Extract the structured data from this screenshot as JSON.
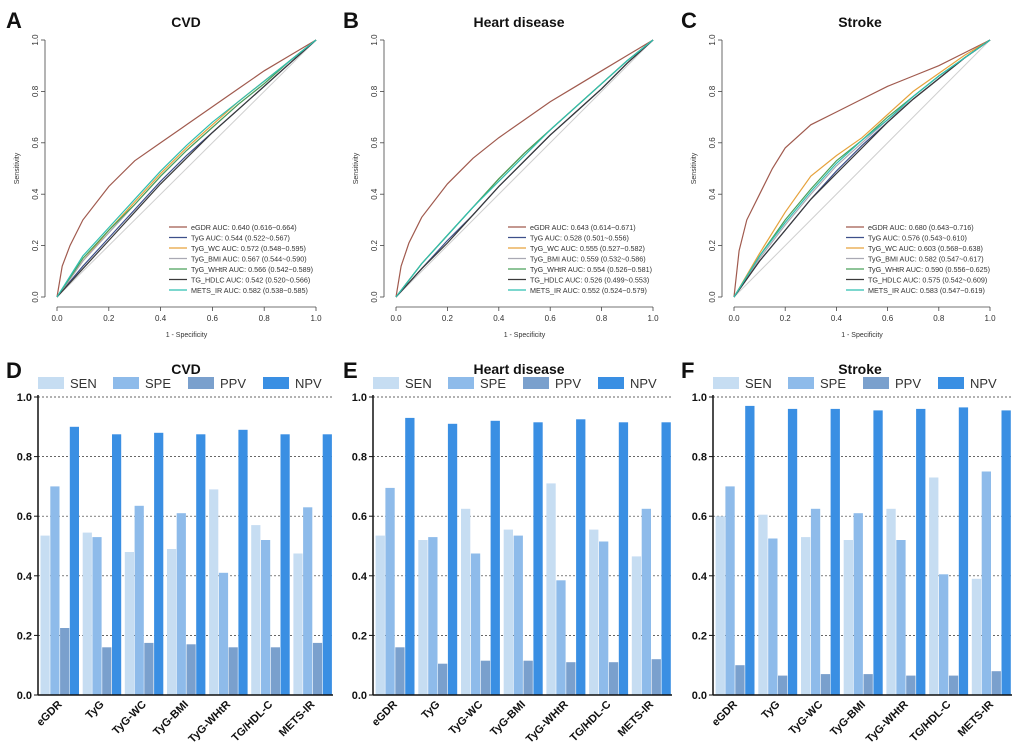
{
  "figure": {
    "colors": {
      "eGDR": "#a05a4e",
      "TyG": "#3d4f8a",
      "TyG_WC": "#e6a23c",
      "TyG_BMI": "#a9a9b3",
      "TyG_WHtR": "#4aa05a",
      "TG_HDLC": "#3a3a3a",
      "METS_IR": "#2fbfb0",
      "diag": "#cfcfcf",
      "SEN": "#c6ddf2",
      "SPE": "#8ebbea",
      "PPV": "#7aa0cd",
      "NPV": "#3a8fe3"
    }
  },
  "chart_data": [
    {
      "panel": "A",
      "type": "line",
      "title": "CVD",
      "xlabel": "1 - Specificity",
      "ylabel": "Sensitivity",
      "xlim": [
        0,
        1
      ],
      "ylim": [
        0,
        1
      ],
      "ticks": [
        "0.0",
        "0.2",
        "0.4",
        "0.6",
        "0.8",
        "1.0"
      ],
      "series": [
        {
          "key": "eGDR",
          "name": "eGDR AUC: 0.640 (0.616~0.664)",
          "x": [
            0,
            0.02,
            0.05,
            0.1,
            0.2,
            0.3,
            0.4,
            0.5,
            0.6,
            0.7,
            0.8,
            0.9,
            1
          ],
          "y": [
            0,
            0.12,
            0.2,
            0.3,
            0.43,
            0.53,
            0.6,
            0.67,
            0.74,
            0.81,
            0.88,
            0.94,
            1
          ]
        },
        {
          "key": "TyG",
          "name": "TyG AUC: 0.544 (0.522~0.567)",
          "x": [
            0,
            0.1,
            0.2,
            0.3,
            0.4,
            0.5,
            0.6,
            0.7,
            0.8,
            0.9,
            1
          ],
          "y": [
            0,
            0.12,
            0.23,
            0.34,
            0.45,
            0.55,
            0.64,
            0.73,
            0.82,
            0.91,
            1
          ]
        },
        {
          "key": "TyG_WC",
          "name": "TyG_WC AUC: 0.572 (0.548~0.595)",
          "x": [
            0,
            0.1,
            0.2,
            0.3,
            0.4,
            0.5,
            0.6,
            0.7,
            0.8,
            0.9,
            1
          ],
          "y": [
            0,
            0.14,
            0.26,
            0.37,
            0.48,
            0.58,
            0.67,
            0.76,
            0.84,
            0.92,
            1
          ]
        },
        {
          "key": "TyG_BMI",
          "name": "TyG_BMI AUC: 0.567 (0.544~0.590)",
          "x": [
            0,
            0.1,
            0.2,
            0.3,
            0.4,
            0.5,
            0.6,
            0.7,
            0.8,
            0.9,
            1
          ],
          "y": [
            0,
            0.14,
            0.25,
            0.36,
            0.47,
            0.57,
            0.66,
            0.75,
            0.83,
            0.92,
            1
          ]
        },
        {
          "key": "TyG_WHtR",
          "name": "TyG_WHtR AUC: 0.566 (0.542~0.589)",
          "x": [
            0,
            0.1,
            0.2,
            0.3,
            0.4,
            0.5,
            0.6,
            0.7,
            0.8,
            0.9,
            1
          ],
          "y": [
            0,
            0.15,
            0.26,
            0.36,
            0.47,
            0.57,
            0.66,
            0.75,
            0.83,
            0.92,
            1
          ]
        },
        {
          "key": "TG_HDLC",
          "name": "TG_HDLC AUC: 0.542 (0.520~0.566)",
          "x": [
            0,
            0.1,
            0.2,
            0.3,
            0.4,
            0.5,
            0.6,
            0.7,
            0.8,
            0.9,
            1
          ],
          "y": [
            0,
            0.11,
            0.22,
            0.33,
            0.44,
            0.54,
            0.64,
            0.73,
            0.82,
            0.91,
            1
          ]
        },
        {
          "key": "METS_IR",
          "name": "METS_IR AUC: 0.582 (0.538~0.585)",
          "x": [
            0,
            0.1,
            0.2,
            0.3,
            0.4,
            0.5,
            0.6,
            0.7,
            0.8,
            0.9,
            1
          ],
          "y": [
            0,
            0.16,
            0.27,
            0.38,
            0.49,
            0.59,
            0.68,
            0.76,
            0.84,
            0.92,
            1
          ]
        }
      ]
    },
    {
      "panel": "B",
      "type": "line",
      "title": "Heart disease",
      "xlabel": "1 - Specificity",
      "ylabel": "Sensitivity",
      "xlim": [
        0,
        1
      ],
      "ylim": [
        0,
        1
      ],
      "ticks": [
        "0.0",
        "0.2",
        "0.4",
        "0.6",
        "0.8",
        "1.0"
      ],
      "series": [
        {
          "key": "eGDR",
          "name": "eGDR AUC: 0.643 (0.614~0.671)",
          "x": [
            0,
            0.02,
            0.05,
            0.1,
            0.2,
            0.3,
            0.4,
            0.5,
            0.6,
            0.7,
            0.8,
            0.9,
            1
          ],
          "y": [
            0,
            0.12,
            0.21,
            0.31,
            0.44,
            0.54,
            0.62,
            0.69,
            0.76,
            0.82,
            0.88,
            0.94,
            1
          ]
        },
        {
          "key": "TyG",
          "name": "TyG AUC: 0.528 (0.501~0.556)",
          "x": [
            0,
            0.1,
            0.2,
            0.3,
            0.4,
            0.5,
            0.6,
            0.7,
            0.8,
            0.9,
            1
          ],
          "y": [
            0,
            0.11,
            0.22,
            0.32,
            0.43,
            0.53,
            0.63,
            0.72,
            0.81,
            0.91,
            1
          ]
        },
        {
          "key": "TyG_WC",
          "name": "TyG_WC AUC: 0.555 (0.527~0.582)",
          "x": [
            0,
            0.1,
            0.2,
            0.3,
            0.4,
            0.5,
            0.6,
            0.7,
            0.8,
            0.9,
            1
          ],
          "y": [
            0,
            0.13,
            0.24,
            0.35,
            0.46,
            0.56,
            0.65,
            0.74,
            0.83,
            0.92,
            1
          ]
        },
        {
          "key": "TyG_BMI",
          "name": "TyG_BMI AUC: 0.559 (0.532~0.586)",
          "x": [
            0,
            0.1,
            0.2,
            0.3,
            0.4,
            0.5,
            0.6,
            0.7,
            0.8,
            0.9,
            1
          ],
          "y": [
            0,
            0.13,
            0.24,
            0.35,
            0.46,
            0.56,
            0.65,
            0.74,
            0.83,
            0.92,
            1
          ]
        },
        {
          "key": "TyG_WHtR",
          "name": "TyG_WHtR AUC: 0.554 (0.526~0.581)",
          "x": [
            0,
            0.1,
            0.2,
            0.3,
            0.4,
            0.5,
            0.6,
            0.7,
            0.8,
            0.9,
            1
          ],
          "y": [
            0,
            0.13,
            0.24,
            0.35,
            0.46,
            0.56,
            0.65,
            0.74,
            0.83,
            0.92,
            1
          ]
        },
        {
          "key": "TG_HDLC",
          "name": "TG_HDLC AUC: 0.526 (0.499~0.553)",
          "x": [
            0,
            0.1,
            0.2,
            0.3,
            0.4,
            0.5,
            0.6,
            0.7,
            0.8,
            0.9,
            1
          ],
          "y": [
            0,
            0.11,
            0.21,
            0.32,
            0.43,
            0.53,
            0.63,
            0.72,
            0.81,
            0.91,
            1
          ]
        },
        {
          "key": "METS_IR",
          "name": "METS_IR AUC: 0.552 (0.524~0.579)",
          "x": [
            0,
            0.1,
            0.2,
            0.3,
            0.4,
            0.5,
            0.6,
            0.7,
            0.8,
            0.9,
            1
          ],
          "y": [
            0,
            0.13,
            0.24,
            0.35,
            0.45,
            0.55,
            0.65,
            0.74,
            0.83,
            0.92,
            1
          ]
        }
      ]
    },
    {
      "panel": "C",
      "type": "line",
      "title": "Stroke",
      "xlabel": "1 - Specificity",
      "ylabel": "Sensitivity",
      "xlim": [
        0,
        1
      ],
      "ylim": [
        0,
        1
      ],
      "ticks": [
        "0.0",
        "0.2",
        "0.4",
        "0.6",
        "0.8",
        "1.0"
      ],
      "series": [
        {
          "key": "eGDR",
          "name": "eGDR AUC: 0.680 (0.643~0.716)",
          "x": [
            0,
            0.02,
            0.05,
            0.1,
            0.15,
            0.2,
            0.3,
            0.4,
            0.5,
            0.6,
            0.7,
            0.8,
            0.9,
            1
          ],
          "y": [
            0,
            0.18,
            0.3,
            0.4,
            0.5,
            0.58,
            0.67,
            0.72,
            0.77,
            0.82,
            0.86,
            0.9,
            0.95,
            1
          ]
        },
        {
          "key": "TyG",
          "name": "TyG AUC: 0.576 (0.543~0.610)",
          "x": [
            0,
            0.1,
            0.2,
            0.3,
            0.4,
            0.5,
            0.6,
            0.7,
            0.8,
            0.9,
            1
          ],
          "y": [
            0,
            0.14,
            0.26,
            0.38,
            0.49,
            0.59,
            0.68,
            0.77,
            0.85,
            0.93,
            1
          ]
        },
        {
          "key": "TyG_WC",
          "name": "TyG_WC AUC: 0.603 (0.568~0.638)",
          "x": [
            0,
            0.1,
            0.2,
            0.3,
            0.4,
            0.5,
            0.6,
            0.7,
            0.8,
            0.9,
            1
          ],
          "y": [
            0,
            0.17,
            0.33,
            0.47,
            0.55,
            0.62,
            0.71,
            0.8,
            0.87,
            0.94,
            1
          ]
        },
        {
          "key": "TyG_BMI",
          "name": "TyG_BMI AUC: 0.582 (0.547~0.617)",
          "x": [
            0,
            0.1,
            0.2,
            0.3,
            0.4,
            0.5,
            0.6,
            0.7,
            0.8,
            0.9,
            1
          ],
          "y": [
            0,
            0.15,
            0.28,
            0.4,
            0.51,
            0.6,
            0.69,
            0.77,
            0.85,
            0.93,
            1
          ]
        },
        {
          "key": "TyG_WHtR",
          "name": "TyG_WHtR AUC: 0.590 (0.556~0.625)",
          "x": [
            0,
            0.1,
            0.2,
            0.3,
            0.4,
            0.5,
            0.6,
            0.7,
            0.8,
            0.9,
            1
          ],
          "y": [
            0,
            0.16,
            0.3,
            0.42,
            0.53,
            0.61,
            0.7,
            0.78,
            0.86,
            0.93,
            1
          ]
        },
        {
          "key": "TG_HDLC",
          "name": "TG_HDLC AUC: 0.575 (0.542~0.609)",
          "x": [
            0,
            0.1,
            0.2,
            0.3,
            0.4,
            0.5,
            0.6,
            0.7,
            0.8,
            0.9,
            1
          ],
          "y": [
            0,
            0.14,
            0.26,
            0.38,
            0.48,
            0.58,
            0.68,
            0.77,
            0.85,
            0.93,
            1
          ]
        },
        {
          "key": "METS_IR",
          "name": "METS_IR AUC: 0.583 (0.547~0.619)",
          "x": [
            0,
            0.1,
            0.2,
            0.3,
            0.4,
            0.5,
            0.6,
            0.7,
            0.8,
            0.9,
            1
          ],
          "y": [
            0,
            0.16,
            0.29,
            0.41,
            0.52,
            0.61,
            0.69,
            0.78,
            0.86,
            0.93,
            1
          ]
        }
      ]
    },
    {
      "panel": "D",
      "type": "bar",
      "title": "CVD",
      "ylim": [
        0,
        1
      ],
      "yticks": [
        "0.0",
        "0.2",
        "0.4",
        "0.6",
        "0.8",
        "1.0"
      ],
      "categories": [
        "eGDR",
        "TyG",
        "TyG-WC",
        "TyG-BMI",
        "TyG-WHtR",
        "TG/HDL-C",
        "METS-IR"
      ],
      "series": [
        {
          "name": "SEN",
          "values": [
            0.535,
            0.545,
            0.48,
            0.49,
            0.69,
            0.57,
            0.475
          ]
        },
        {
          "name": "SPE",
          "values": [
            0.7,
            0.53,
            0.635,
            0.61,
            0.41,
            0.52,
            0.63
          ]
        },
        {
          "name": "PPV",
          "values": [
            0.225,
            0.16,
            0.175,
            0.17,
            0.16,
            0.16,
            0.175
          ]
        },
        {
          "name": "NPV",
          "values": [
            0.9,
            0.875,
            0.88,
            0.875,
            0.89,
            0.875,
            0.875
          ]
        }
      ]
    },
    {
      "panel": "E",
      "type": "bar",
      "title": "Heart disease",
      "ylim": [
        0,
        1
      ],
      "yticks": [
        "0.0",
        "0.2",
        "0.4",
        "0.6",
        "0.8",
        "1.0"
      ],
      "categories": [
        "eGDR",
        "TyG",
        "TyG-WC",
        "TyG-BMI",
        "TyG-WHtR",
        "TG/HDL-C",
        "METS-IR"
      ],
      "series": [
        {
          "name": "SEN",
          "values": [
            0.535,
            0.52,
            0.625,
            0.555,
            0.71,
            0.555,
            0.465
          ]
        },
        {
          "name": "SPE",
          "values": [
            0.695,
            0.53,
            0.475,
            0.535,
            0.385,
            0.515,
            0.625
          ]
        },
        {
          "name": "PPV",
          "values": [
            0.16,
            0.105,
            0.115,
            0.115,
            0.11,
            0.11,
            0.12
          ]
        },
        {
          "name": "NPV",
          "values": [
            0.93,
            0.91,
            0.92,
            0.915,
            0.925,
            0.915,
            0.915
          ]
        }
      ]
    },
    {
      "panel": "F",
      "type": "bar",
      "title": "Stroke",
      "ylim": [
        0,
        1
      ],
      "yticks": [
        "0.0",
        "0.2",
        "0.4",
        "0.6",
        "0.8",
        "1.0"
      ],
      "categories": [
        "eGDR",
        "TyG",
        "TyG-WC",
        "TyG-BMI",
        "TyG-WHtR",
        "TG/HDL-C",
        "METS-IR"
      ],
      "series": [
        {
          "name": "SEN",
          "values": [
            0.6,
            0.605,
            0.53,
            0.52,
            0.625,
            0.73,
            0.39
          ]
        },
        {
          "name": "SPE",
          "values": [
            0.7,
            0.525,
            0.625,
            0.61,
            0.52,
            0.405,
            0.75
          ]
        },
        {
          "name": "PPV",
          "values": [
            0.1,
            0.065,
            0.07,
            0.07,
            0.065,
            0.065,
            0.08
          ]
        },
        {
          "name": "NPV",
          "values": [
            0.97,
            0.96,
            0.96,
            0.955,
            0.96,
            0.965,
            0.955
          ]
        }
      ]
    }
  ]
}
